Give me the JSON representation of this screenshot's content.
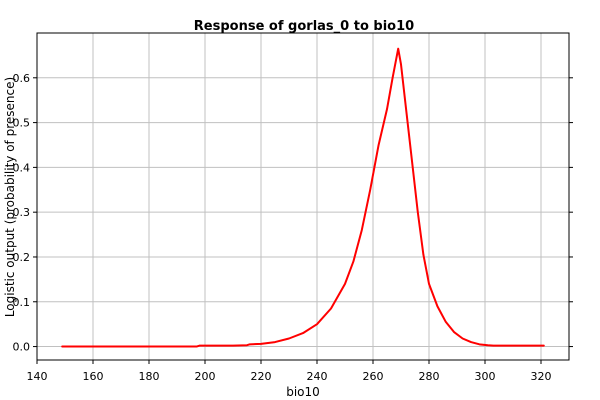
{
  "chart_data": {
    "type": "line",
    "title": "Response of gorlas_0 to bio10",
    "xlabel": "bio10",
    "ylabel": "Logistic output (probability of presence)",
    "xlim": [
      140,
      330
    ],
    "ylim": [
      -0.03,
      0.7
    ],
    "xticks": [
      140,
      160,
      180,
      200,
      220,
      240,
      260,
      280,
      300,
      320
    ],
    "yticks": [
      0.0,
      0.1,
      0.2,
      0.3,
      0.4,
      0.5,
      0.6
    ],
    "ytick_labels": [
      "0.0",
      "0.1",
      "0.2",
      "0.3",
      "0.4",
      "0.5",
      "0.6"
    ],
    "grid": true,
    "series": [
      {
        "color": "#ff0000",
        "x": [
          149,
          160,
          170,
          180,
          190,
          197,
          198,
          205,
          210,
          215,
          216,
          220,
          225,
          230,
          235,
          240,
          245,
          250,
          253,
          256,
          259,
          262,
          265,
          267,
          269,
          270,
          272,
          274,
          276,
          278,
          280,
          283,
          286,
          289,
          292,
          295,
          298,
          301,
          303,
          310,
          321
        ],
        "y": [
          0.0,
          0.0,
          0.0,
          0.0,
          0.0,
          0.0,
          0.002,
          0.002,
          0.002,
          0.003,
          0.005,
          0.006,
          0.01,
          0.018,
          0.03,
          0.05,
          0.085,
          0.14,
          0.19,
          0.26,
          0.35,
          0.45,
          0.53,
          0.6,
          0.665,
          0.63,
          0.52,
          0.41,
          0.3,
          0.205,
          0.14,
          0.09,
          0.055,
          0.032,
          0.018,
          0.01,
          0.005,
          0.003,
          0.002,
          0.002,
          0.002
        ]
      }
    ]
  }
}
